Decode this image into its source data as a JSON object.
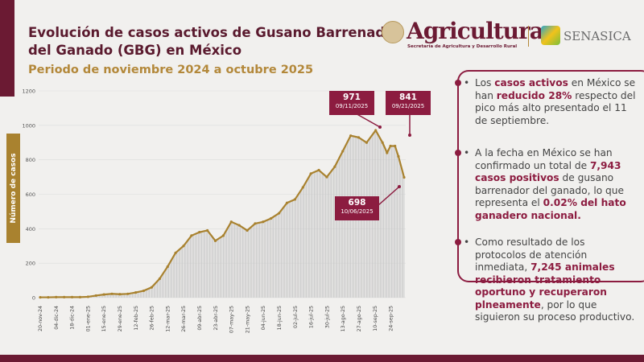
{
  "header": {
    "title": "Evolución de casos activos de Gusano Barrenador del Ganado (GBG) en México",
    "subtitle": "Periodo de noviembre 2024 a octubre 2025",
    "logo_text": "Agricultura",
    "logo_subtext": "Secretaría de Agricultura y Desarrollo Rural",
    "partner_logo": "SENASICA"
  },
  "colors": {
    "maroon": "#8c1c40",
    "gold": "#a9822f",
    "bars": "#c8c8c8"
  },
  "chart_data": {
    "type": "line",
    "ylabel": "Número de casos",
    "ylim": [
      0,
      1200
    ],
    "yticks": [
      0,
      200,
      400,
      600,
      800,
      1000,
      1200
    ],
    "grid": true,
    "xticks": [
      "20-nov-24",
      "04-dic-24",
      "18-dic-24",
      "01-ene-25",
      "15-ene-25",
      "29-ene-25",
      "12-feb-25",
      "26-feb-25",
      "12-mar-25",
      "26-mar-25",
      "09-abr-25",
      "23-abr-25",
      "07-may-25",
      "21-may-25",
      "04-jun-25",
      "18-jun-25",
      "02-jul-25",
      "16-jul-25",
      "30-jul-25",
      "13-ago-25",
      "27-ago-25",
      "10-sep-25",
      "24-sep-25"
    ],
    "x": [
      "2024-11-20",
      "2024-11-27",
      "2024-12-04",
      "2024-12-11",
      "2024-12-18",
      "2024-12-25",
      "2025-01-01",
      "2025-01-08",
      "2025-01-15",
      "2025-01-22",
      "2025-01-29",
      "2025-02-05",
      "2025-02-12",
      "2025-02-19",
      "2025-02-26",
      "2025-03-05",
      "2025-03-12",
      "2025-03-19",
      "2025-03-26",
      "2025-04-02",
      "2025-04-09",
      "2025-04-16",
      "2025-04-23",
      "2025-04-30",
      "2025-05-07",
      "2025-05-14",
      "2025-05-21",
      "2025-05-28",
      "2025-06-04",
      "2025-06-11",
      "2025-06-18",
      "2025-06-25",
      "2025-07-02",
      "2025-07-09",
      "2025-07-16",
      "2025-07-23",
      "2025-07-30",
      "2025-08-06",
      "2025-08-13",
      "2025-08-20",
      "2025-08-27",
      "2025-09-03",
      "2025-09-11",
      "2025-09-17",
      "2025-09-21",
      "2025-09-24",
      "2025-09-28",
      "2025-10-01",
      "2025-10-06"
    ],
    "values": [
      2,
      2,
      3,
      3,
      3,
      3,
      5,
      12,
      18,
      22,
      20,
      22,
      30,
      40,
      60,
      110,
      180,
      260,
      300,
      360,
      380,
      390,
      330,
      360,
      440,
      420,
      390,
      430,
      440,
      460,
      490,
      550,
      570,
      640,
      720,
      740,
      700,
      760,
      850,
      940,
      930,
      900,
      971,
      900,
      841,
      880,
      880,
      820,
      698
    ],
    "annotations": [
      {
        "value": "971",
        "date": "09/11/2025"
      },
      {
        "value": "841",
        "date": "09/21/2025"
      },
      {
        "value": "698",
        "date": "10/06/2025"
      }
    ]
  },
  "panel": {
    "bullets": [
      [
        {
          "t": "Los "
        },
        {
          "t": "casos activos",
          "b": 1
        },
        {
          "t": " en México se han "
        },
        {
          "t": "reducido 28%",
          "b": 1
        },
        {
          "t": " respecto del pico más alto presentado el 11 de septiembre."
        }
      ],
      [
        {
          "t": "A la fecha en México se han confirmado un total de "
        },
        {
          "t": "7,943 casos positivos",
          "b": 1
        },
        {
          "t": " de gusano barrenador del ganado, lo que representa el "
        },
        {
          "t": "0.02% del hato ganadero nacional.",
          "b": 1
        }
      ],
      [
        {
          "t": "Como resultado de los protocolos de atención inmediata, "
        },
        {
          "t": "7,245 animales recibieron tratamiento oportuno y recuperaron plneamente",
          "b": 1
        },
        {
          "t": ", por lo que siguieron su proceso productivo."
        }
      ]
    ]
  }
}
